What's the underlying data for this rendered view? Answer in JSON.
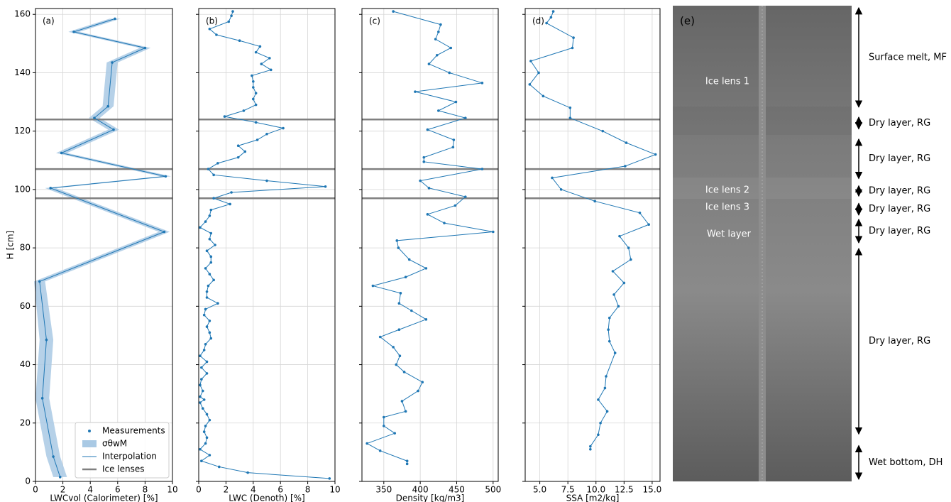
{
  "chart_data": [
    {
      "type": "line",
      "label": "(a)",
      "xlabel": "LWCvol (Calorimeter) [%]",
      "ylabel": "H [cm]",
      "y": [
        158.5,
        154,
        148.5,
        143.5,
        128.5,
        124.5,
        120.5,
        112.5,
        104.5,
        100.5,
        85.5,
        68.5,
        48.5,
        28.5,
        8.5,
        1.5
      ],
      "series": [
        {
          "name": "Measurements",
          "style": "markers",
          "color": "#1f77b4",
          "values": [
            5.8,
            2.8,
            8.0,
            5.6,
            5.3,
            4.3,
            5.7,
            1.9,
            9.5,
            1.1,
            9.4,
            0.3,
            0.8,
            0.5,
            1.3,
            1.8
          ]
        },
        {
          "name": "σθwM",
          "style": "band",
          "color": "#a9c9e4",
          "values": [
            0.4,
            0.4,
            0.4,
            0.4,
            0.4,
            0.4,
            0.4,
            0.4,
            0.4,
            0.4,
            0.4,
            0.4,
            0.5,
            0.5,
            0.5,
            0.5
          ]
        },
        {
          "name": "Interpolation",
          "style": "line",
          "color": "#1f77b4",
          "values": [
            5.8,
            2.8,
            8.0,
            5.6,
            5.3,
            4.3,
            5.7,
            1.9,
            9.5,
            1.1,
            9.4,
            0.3,
            0.8,
            0.5,
            1.3,
            1.8
          ]
        }
      ],
      "hlines": {
        "name": "Ice lenses",
        "color": "#808080",
        "values": [
          124,
          107,
          97
        ]
      },
      "xlim": [
        0,
        10
      ],
      "xticks": [
        0,
        2,
        4,
        6,
        8,
        10
      ],
      "ylim": [
        0,
        162
      ],
      "yticks": [
        0,
        20,
        40,
        60,
        80,
        100,
        120,
        140,
        160
      ],
      "show_yticklabels": true,
      "grid": true,
      "legend": "lower right"
    },
    {
      "type": "line",
      "label": "(b)",
      "xlabel": "LWC (Denoth) [%]",
      "y": [
        161,
        159.5,
        157.5,
        155,
        153,
        151,
        149,
        147,
        145,
        143,
        141,
        139,
        137,
        135,
        133,
        131,
        129,
        127,
        125,
        123,
        121,
        119,
        117,
        115,
        113,
        111,
        109,
        107,
        105,
        103,
        101,
        99,
        97,
        95,
        93,
        91,
        89,
        87,
        85,
        83,
        81,
        79,
        77,
        75,
        73,
        71,
        69,
        67,
        65,
        63,
        61,
        59,
        57,
        55,
        53,
        51,
        49,
        47,
        45,
        43,
        41,
        39,
        37,
        35,
        33,
        31,
        29,
        28,
        27,
        25,
        23,
        21,
        19,
        17,
        15,
        13,
        11,
        9,
        7,
        5,
        3,
        1
      ],
      "series": [
        {
          "style": "markers+line",
          "color": "#1f77b4",
          "values": [
            2.5,
            2.4,
            2.2,
            0.8,
            1.3,
            3.0,
            4.5,
            4.2,
            5.2,
            4.6,
            5.3,
            3.9,
            4.0,
            4.0,
            4.2,
            4.0,
            4.2,
            3.3,
            1.9,
            4.2,
            6.2,
            5.0,
            4.3,
            2.9,
            3.4,
            2.9,
            1.4,
            0.7,
            1.1,
            5.0,
            9.3,
            2.4,
            1.1,
            2.3,
            0.9,
            0.8,
            0.5,
            0.1,
            0.9,
            0.8,
            1.2,
            0.6,
            0.9,
            0.9,
            0.5,
            0.8,
            1.1,
            0.7,
            0.6,
            0.6,
            1.4,
            0.5,
            0.4,
            0.8,
            0.6,
            0.8,
            0.9,
            0.5,
            0.4,
            0.1,
            0.6,
            0.2,
            0.6,
            0.2,
            0.1,
            0.3,
            0.1,
            0.4,
            0.1,
            0.3,
            0.6,
            0.8,
            0.5,
            0.4,
            0.6,
            0.5,
            0.1,
            0.8,
            0.2,
            1.5,
            3.6,
            9.6
          ]
        }
      ],
      "hlines": {
        "color": "#808080",
        "values": [
          124,
          107,
          97
        ]
      },
      "xlim": [
        0,
        10
      ],
      "xticks": [
        0,
        2,
        4,
        6,
        8,
        10
      ],
      "ylim": [
        0,
        162
      ],
      "yticks": [
        0,
        20,
        40,
        60,
        80,
        100,
        120,
        140,
        160
      ],
      "show_yticklabels": false,
      "grid": true
    },
    {
      "type": "line",
      "label": "(c)",
      "xlabel": "Density [kg/m3]",
      "y": [
        161,
        156.5,
        154,
        151.5,
        148.5,
        146,
        143,
        140,
        136.5,
        133.5,
        130,
        127,
        124.5,
        120.5,
        117,
        114.5,
        111,
        109.5,
        107,
        103,
        100.5,
        97.5,
        94.5,
        91.5,
        88.5,
        85.5,
        82.5,
        80,
        76,
        73,
        70,
        67,
        64.5,
        61,
        58.5,
        55.5,
        52,
        49.5,
        46,
        43,
        40,
        37.5,
        34,
        31,
        27.5,
        24,
        22,
        19,
        16.5,
        13,
        10.5,
        7,
        6
      ],
      "series": [
        {
          "style": "markers+line",
          "color": "#1f77b4",
          "values": [
            363,
            428,
            425,
            421,
            442,
            423,
            412,
            440,
            485,
            393,
            449,
            425,
            462,
            410,
            446,
            445,
            405,
            405,
            485,
            400,
            412,
            462,
            448,
            410,
            433,
            500,
            368,
            370,
            385,
            408,
            380,
            335,
            373,
            371,
            388,
            408,
            371,
            345,
            363,
            372,
            367,
            378,
            403,
            397,
            375,
            380,
            350,
            350,
            365,
            327,
            345,
            382,
            382
          ]
        }
      ],
      "hlines": {
        "color": "#808080",
        "values": [
          124,
          107,
          97
        ]
      },
      "xlim": [
        320,
        507
      ],
      "xticks": [
        350,
        400,
        450,
        500
      ],
      "ylim": [
        0,
        162
      ],
      "yticks": [
        0,
        20,
        40,
        60,
        80,
        100,
        120,
        140,
        160
      ],
      "show_yticklabels": false,
      "grid": true
    },
    {
      "type": "line",
      "label": "(d)",
      "xlabel": "SSA [m2/kg]",
      "y": [
        161,
        159,
        157,
        152,
        148.5,
        144,
        140,
        136,
        132,
        128,
        124.5,
        120,
        116,
        112,
        108,
        104,
        100,
        96,
        92,
        88,
        84,
        80,
        76,
        72,
        68,
        64,
        60,
        56,
        52,
        48,
        44,
        36,
        32,
        28,
        24,
        20,
        16,
        12,
        11
      ],
      "series": [
        {
          "style": "markers+line",
          "color": "#1f77b4",
          "values": [
            6.2,
            6.0,
            5.6,
            8.0,
            7.9,
            4.2,
            4.9,
            4.1,
            5.3,
            7.7,
            7.7,
            10.6,
            12.7,
            15.3,
            12.6,
            6.1,
            6.9,
            9.9,
            13.9,
            14.7,
            12.1,
            12.9,
            13.1,
            11.5,
            12.5,
            11.6,
            12.0,
            11.2,
            11.1,
            11.2,
            11.7,
            10.9,
            10.8,
            10.2,
            11.0,
            10.4,
            10.2,
            9.5,
            9.5
          ]
        }
      ],
      "hlines": {
        "color": "#808080",
        "values": [
          124,
          107,
          97
        ]
      },
      "xlim": [
        3.7,
        15.7
      ],
      "xticks": [
        {
          "value": 5,
          "label": "5.0"
        },
        7.5,
        {
          "value": 10,
          "label": "10.0"
        },
        12.5,
        {
          "value": 15,
          "label": "15.0"
        }
      ],
      "ylim": [
        0,
        162
      ],
      "yticks": [
        0,
        20,
        40,
        60,
        80,
        100,
        120,
        140,
        160
      ],
      "show_yticklabels": false,
      "grid": true
    }
  ],
  "photo": {
    "label": "(e)",
    "annotations": [
      "Ice lens 1",
      "Ice lens 2",
      "Ice lens 3",
      "Wet layer"
    ],
    "layers": [
      {
        "label": "Surface melt, MF",
        "top": 162.5,
        "bottom": 128
      },
      {
        "label": "Dry layer, RG",
        "top": 125,
        "bottom": 120.5
      },
      {
        "label": "Dry layer, RG",
        "top": 117.5,
        "bottom": 103.5
      },
      {
        "label": "Dry layer, RG",
        "top": 101.5,
        "bottom": 97.5
      },
      {
        "label": "Dry layer, RG",
        "top": 95.5,
        "bottom": 91
      },
      {
        "label": "Dry layer, RG",
        "top": 90,
        "bottom": 81.5
      },
      {
        "label": "Dry layer, RG",
        "top": 80,
        "bottom": 16
      },
      {
        "label": "Wet bottom, DH",
        "top": 12.5,
        "bottom": 0.5
      }
    ]
  }
}
